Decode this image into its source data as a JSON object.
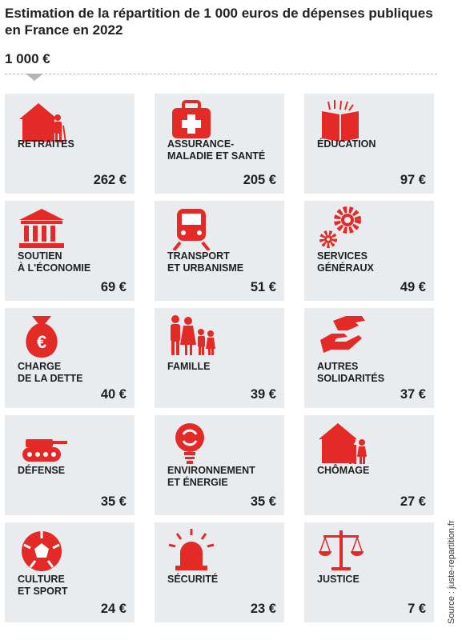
{
  "title": "Estimation de la répartition de 1 000 euros de dépenses publiques en France en 2022",
  "total": "1 000 €",
  "source": "Source : juste-repartition.fr",
  "accent_color": "#e32a26",
  "chart_data": {
    "type": "table",
    "title": "Estimation de la répartition de 1 000 euros de dépenses publiques en France en 2022",
    "total": 1000,
    "unit": "€",
    "categories": [
      "Retraites",
      "Assurance-maladie et santé",
      "Éducation",
      "Soutien à l'économie",
      "Transport et urbanisme",
      "Services généraux",
      "Charge de la dette",
      "Famille",
      "Autres solidarités",
      "Défense",
      "Environnement et énergie",
      "Chômage",
      "Culture et sport",
      "Sécurité",
      "Justice"
    ],
    "values": [
      262,
      205,
      97,
      69,
      51,
      49,
      40,
      39,
      37,
      35,
      35,
      27,
      24,
      23,
      7
    ]
  },
  "tiles": [
    {
      "label": "RETRAITES",
      "value": "262 €",
      "icon": "house-elderly-icon"
    },
    {
      "label": "ASSURANCE-\nMALADIE ET SANTÉ",
      "value": "205 €",
      "icon": "medical-kit-icon"
    },
    {
      "label": "ÉDUCATION",
      "value": "97 €",
      "icon": "book-icon"
    },
    {
      "label": "SOUTIEN\nÀ L'ÉCONOMIE",
      "value": "69 €",
      "icon": "bank-building-icon"
    },
    {
      "label": "TRANSPORT\nET URBANISME",
      "value": "51 €",
      "icon": "train-icon"
    },
    {
      "label": "SERVICES\nGÉNÉRAUX",
      "value": "49 €",
      "icon": "gears-icon"
    },
    {
      "label": "CHARGE\nDE LA DETTE",
      "value": "40 €",
      "icon": "euro-money-bag-icon"
    },
    {
      "label": "FAMILLE",
      "value": "39 €",
      "icon": "family-icon"
    },
    {
      "label": "AUTRES\nSOLIDARITÉS",
      "value": "37 €",
      "icon": "helping-hands-icon"
    },
    {
      "label": "DÉFENSE",
      "value": "35 €",
      "icon": "tank-icon"
    },
    {
      "label": "ENVIRONNEMENT\nET ÉNERGIE",
      "value": "35 €",
      "icon": "recycle-bulb-icon"
    },
    {
      "label": "CHÔMAGE",
      "value": "27 €",
      "icon": "house-family-icon"
    },
    {
      "label": "CULTURE\nET SPORT",
      "value": "24 €",
      "icon": "football-icon"
    },
    {
      "label": "SÉCURITÉ",
      "value": "23 €",
      "icon": "siren-icon"
    },
    {
      "label": "JUSTICE",
      "value": "7 €",
      "icon": "scales-icon"
    }
  ]
}
